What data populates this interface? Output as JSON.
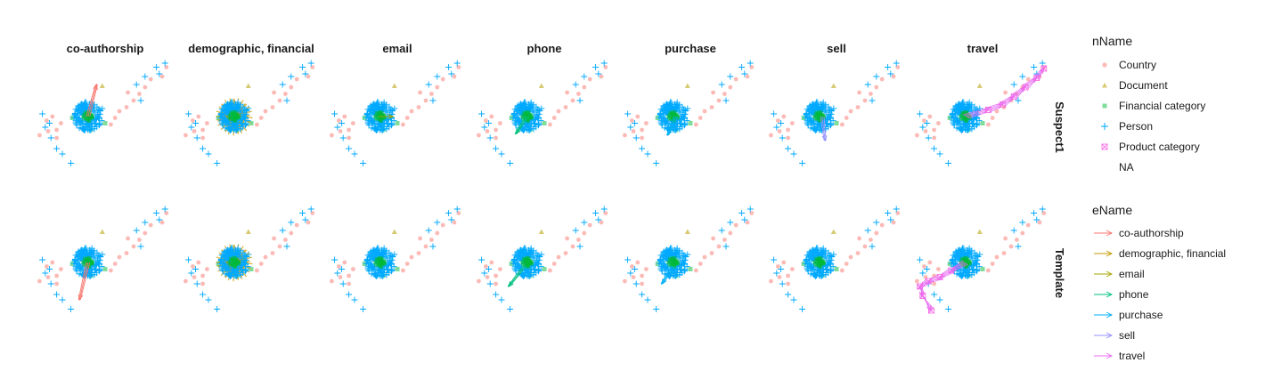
{
  "chart_data": {
    "type": "scatter",
    "subtype": "faceted network graph (nodes and directed edges)",
    "column_facets": [
      "co-authorship",
      "demographic, financial",
      "email",
      "phone",
      "purchase",
      "sell",
      "travel"
    ],
    "row_facets": [
      "Suspect1",
      "Template"
    ],
    "grid": false,
    "axes_visible": false,
    "legend_placement": "right",
    "node_legend": {
      "title": "nName",
      "entries": [
        {
          "label": "Country",
          "shape": "circle",
          "color": "#F8766D"
        },
        {
          "label": "Document",
          "shape": "triangle",
          "color": "#B79F00"
        },
        {
          "label": "Financial category",
          "shape": "square",
          "color": "#00BA38"
        },
        {
          "label": "Person",
          "shape": "plus",
          "color": "#00A9FF"
        },
        {
          "label": "Product category",
          "shape": "boxx",
          "color": "#F564E3"
        },
        {
          "label": "NA",
          "shape": "none",
          "color": "#ffffff"
        }
      ]
    },
    "edge_legend": {
      "title": "eName",
      "entries": [
        {
          "label": "co-authorship",
          "color": "#F8766D"
        },
        {
          "label": "demographic, financial",
          "color": "#C49A00"
        },
        {
          "label": "email",
          "color": "#A3A500"
        },
        {
          "label": "phone",
          "color": "#00BF7D"
        },
        {
          "label": "purchase",
          "color": "#00B0F6"
        },
        {
          "label": "sell",
          "color": "#9590FF"
        },
        {
          "label": "travel",
          "color": "#E76BF3"
        }
      ]
    },
    "layout": {
      "countries": [
        [
          0.04,
          0.56
        ],
        [
          0.1,
          0.53
        ],
        [
          0.16,
          0.52
        ],
        [
          0.19,
          0.47
        ],
        [
          0.09,
          0.45
        ],
        [
          0.13,
          0.42
        ],
        [
          0.16,
          0.58
        ],
        [
          0.54,
          0.48
        ],
        [
          0.57,
          0.43
        ],
        [
          0.6,
          0.38
        ],
        [
          0.65,
          0.35
        ],
        [
          0.7,
          0.3
        ],
        [
          0.74,
          0.25
        ],
        [
          0.78,
          0.2
        ],
        [
          0.82,
          0.14
        ],
        [
          0.9,
          0.12
        ],
        [
          0.93,
          0.05
        ],
        [
          0.66,
          0.24
        ]
      ],
      "isolated_persons": [
        [
          0.08,
          0.5
        ],
        [
          0.11,
          0.47
        ],
        [
          0.06,
          0.4
        ],
        [
          0.12,
          0.58
        ],
        [
          0.2,
          0.7
        ],
        [
          0.26,
          0.77
        ],
        [
          0.16,
          0.66
        ],
        [
          0.72,
          0.18
        ],
        [
          0.78,
          0.12
        ],
        [
          0.86,
          0.05
        ],
        [
          0.88,
          0.1
        ],
        [
          0.92,
          0.02
        ],
        [
          0.48,
          0.36
        ],
        [
          0.75,
          0.3
        ]
      ],
      "document": [
        0.48,
        0.19
      ],
      "financial": [
        [
          0.27,
          0.43
        ],
        [
          0.5,
          0.47
        ],
        [
          0.4,
          0.52
        ]
      ],
      "cluster_center": [
        0.38,
        0.42
      ],
      "cluster_radius": [
        0.1,
        0.11
      ]
    },
    "edge_highlight": {
      "Suspect1": {
        "co-authorship": {
          "color": "#F8766D",
          "kind": "line",
          "from": [
            0.38,
            0.42
          ],
          "to": [
            0.44,
            0.18
          ]
        },
        "demographic, financial": {
          "color": "#C49A00",
          "kind": "blob"
        },
        "email": {
          "color": "#A3A500",
          "kind": "line",
          "from": [
            0.38,
            0.42
          ],
          "to": [
            0.47,
            0.42
          ]
        },
        "phone": {
          "color": "#00BF7D",
          "kind": "line",
          "from": [
            0.38,
            0.42
          ],
          "to": [
            0.3,
            0.55
          ]
        },
        "purchase": {
          "color": "#00B0F6",
          "kind": "line",
          "from": [
            0.4,
            0.42
          ],
          "to": [
            0.34,
            0.56
          ]
        },
        "sell": {
          "color": "#9590FF",
          "kind": "line",
          "from": [
            0.4,
            0.42
          ],
          "to": [
            0.42,
            0.6
          ]
        },
        "travel": {
          "color": "#E76BF3",
          "kind": "chain",
          "points": [
            [
              0.38,
              0.42
            ],
            [
              0.54,
              0.37
            ],
            [
              0.64,
              0.33
            ],
            [
              0.72,
              0.27
            ],
            [
              0.8,
              0.2
            ],
            [
              0.88,
              0.13
            ],
            [
              0.93,
              0.06
            ]
          ]
        }
      },
      "Template": {
        "co-authorship": {
          "color": "#F8766D",
          "kind": "line",
          "from": [
            0.38,
            0.42
          ],
          "to": [
            0.32,
            0.7
          ]
        },
        "demographic, financial": {
          "color": "#C49A00",
          "kind": "blob"
        },
        "email": {
          "color": "#A3A500",
          "kind": "none"
        },
        "phone": {
          "color": "#00BF7D",
          "kind": "line",
          "from": [
            0.36,
            0.45
          ],
          "to": [
            0.25,
            0.6
          ]
        },
        "purchase": {
          "color": "#00B0F6",
          "kind": "line",
          "from": [
            0.38,
            0.45
          ],
          "to": [
            0.3,
            0.58
          ]
        },
        "sell": {
          "color": "#9590FF",
          "kind": "none"
        },
        "travel": {
          "color": "#E76BF3",
          "kind": "chain",
          "points": [
            [
              0.38,
              0.42
            ],
            [
              0.28,
              0.48
            ],
            [
              0.2,
              0.53
            ],
            [
              0.12,
              0.56
            ],
            [
              0.06,
              0.6
            ],
            [
              0.08,
              0.67
            ],
            [
              0.14,
              0.78
            ]
          ]
        }
      }
    }
  }
}
